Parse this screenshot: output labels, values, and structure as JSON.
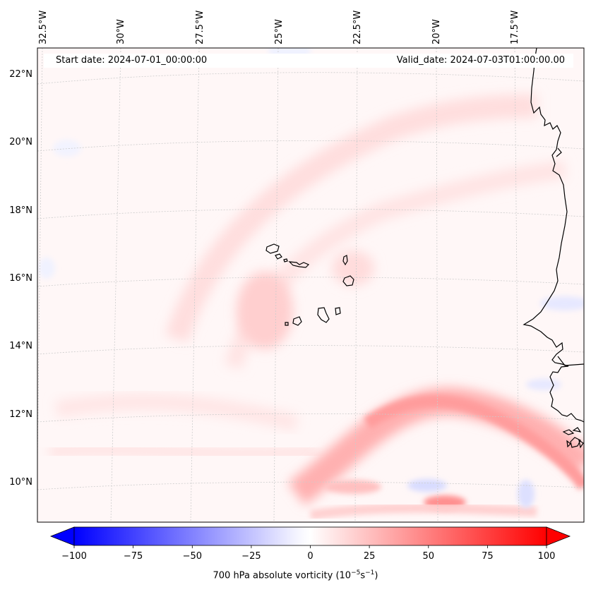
{
  "map": {
    "start_date": "Start date: 2024-07-01_00:00:00",
    "valid_date": "Valid_date: 2024-07-03T01:00:00.00",
    "lon_labels": [
      "32.5°W",
      "30°W",
      "27.5°W",
      "25°W",
      "22.5°W",
      "20°W",
      "17.5°W"
    ],
    "lat_labels": [
      "22°N",
      "20°N",
      "18°N",
      "16°N",
      "14°N",
      "12°N",
      "10°N"
    ],
    "region": "Cape Verde islands and West African coast",
    "colors": {
      "positive": "#ff0000",
      "negative": "#0000ff",
      "coastline": "#000000",
      "grid": "#cccccc"
    }
  },
  "colorbar": {
    "min": -100,
    "max": 100,
    "ticks": [
      "−100",
      "−75",
      "−50",
      "−25",
      "0",
      "25",
      "50",
      "75",
      "100"
    ],
    "label_text": "700 hPa absolute vorticity (10",
    "label_exp1": "−5",
    "label_mid": "s",
    "label_exp2": "−1",
    "label_end": ")"
  }
}
